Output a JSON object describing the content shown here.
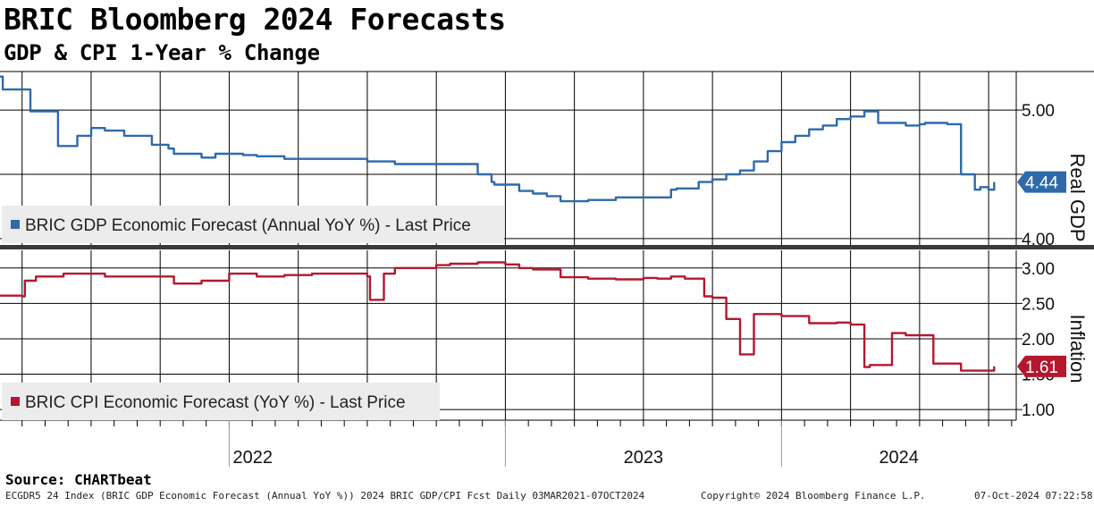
{
  "header": {
    "title": "BRIC Bloomberg 2024 Forecasts",
    "subtitle": "GDP & CPI 1-Year % Change"
  },
  "source": "Source: CHARTbeat",
  "footer": {
    "left": "ECGDR5 24 Index (BRIC GDP Economic Forecast (Annual YoY %)) 2024 BRIC GDP/CPI Fcst  Daily 03MAR2021-07OCT2024",
    "center": "Copyright© 2024 Bloomberg Finance L.P.",
    "right": "07-Oct-2024 07:22:58"
  },
  "colors": {
    "gdp": "#2e6aaa",
    "cpi": "#b4182e",
    "grid": "#000000",
    "legend_bg": "#ececec"
  },
  "chart_data": [
    {
      "type": "line",
      "name": "gdp_panel",
      "axis_label": "Real GDP",
      "ylim": [
        3.95,
        5.3
      ],
      "yticks": [
        4.0,
        4.5,
        5.0
      ],
      "ytick_labels": [
        "4.00",
        "",
        "5.00"
      ],
      "last_value": 4.44,
      "last_label": "4.44",
      "legend": "BRIC GDP Economic Forecast (Annual YoY %) - Last Price",
      "series": [
        {
          "name": "BRIC GDP Economic Forecast (Annual YoY %)",
          "x": [
            2021.17,
            2021.18,
            2021.27,
            2021.28,
            2021.37,
            2021.38,
            2021.45,
            2021.5,
            2021.55,
            2021.62,
            2021.72,
            2021.78,
            2021.8,
            2021.9,
            2021.95,
            2022.05,
            2022.1,
            2022.2,
            2022.3,
            2022.5,
            2022.6,
            2022.8,
            2022.9,
            2022.95,
            2022.96,
            2023.0,
            2023.05,
            2023.1,
            2023.15,
            2023.2,
            2023.3,
            2023.4,
            2023.5,
            2023.6,
            2023.62,
            2023.7,
            2023.75,
            2023.8,
            2023.85,
            2023.9,
            2023.95,
            2024.0,
            2024.05,
            2024.1,
            2024.15,
            2024.2,
            2024.25,
            2024.3,
            2024.32,
            2024.35,
            2024.4,
            2024.45,
            2024.5,
            2024.52,
            2024.6,
            2024.65,
            2024.7,
            2024.72,
            2024.75,
            2024.77
          ],
          "y": [
            5.26,
            5.16,
            5.16,
            4.99,
            4.99,
            4.72,
            4.8,
            4.86,
            4.84,
            4.8,
            4.73,
            4.7,
            4.66,
            4.63,
            4.66,
            4.65,
            4.64,
            4.62,
            4.62,
            4.6,
            4.58,
            4.58,
            4.5,
            4.44,
            4.42,
            4.42,
            4.37,
            4.35,
            4.33,
            4.29,
            4.3,
            4.32,
            4.32,
            4.38,
            4.39,
            4.44,
            4.46,
            4.5,
            4.53,
            4.6,
            4.68,
            4.75,
            4.8,
            4.85,
            4.88,
            4.93,
            4.95,
            4.99,
            4.99,
            4.9,
            4.9,
            4.88,
            4.89,
            4.9,
            4.89,
            4.5,
            4.38,
            4.4,
            4.38,
            4.44
          ]
        }
      ]
    },
    {
      "type": "line",
      "name": "cpi_panel",
      "axis_label": "Inflation",
      "ylim": [
        0.85,
        3.25
      ],
      "yticks": [
        1.0,
        1.5,
        2.0,
        2.5,
        3.0
      ],
      "ytick_labels": [
        "1.00",
        "1.50",
        "2.00",
        "2.50",
        "3.00"
      ],
      "last_value": 1.61,
      "last_label": "1.61",
      "legend": "BRIC CPI Economic Forecast (YoY %) - Last Price",
      "series": [
        {
          "name": "BRIC CPI Economic Forecast (YoY %)",
          "x": [
            2021.17,
            2021.25,
            2021.26,
            2021.3,
            2021.4,
            2021.5,
            2021.55,
            2021.7,
            2021.8,
            2021.9,
            2022.0,
            2022.1,
            2022.2,
            2022.3,
            2022.5,
            2022.51,
            2022.56,
            2022.6,
            2022.75,
            2022.8,
            2022.9,
            2023.0,
            2023.05,
            2023.1,
            2023.2,
            2023.3,
            2023.4,
            2023.5,
            2023.55,
            2023.6,
            2023.65,
            2023.72,
            2023.73,
            2023.75,
            2023.8,
            2023.85,
            2023.9,
            2024.0,
            2024.1,
            2024.12,
            2024.2,
            2024.25,
            2024.3,
            2024.32,
            2024.35,
            2024.4,
            2024.45,
            2024.55,
            2024.65,
            2024.7,
            2024.77
          ],
          "y": [
            2.61,
            2.6,
            2.82,
            2.88,
            2.92,
            2.92,
            2.88,
            2.88,
            2.78,
            2.82,
            2.92,
            2.88,
            2.9,
            2.92,
            2.88,
            2.55,
            2.92,
            3.0,
            3.04,
            3.06,
            3.08,
            3.05,
            3.0,
            2.98,
            2.87,
            2.85,
            2.84,
            2.86,
            2.85,
            2.88,
            2.85,
            2.6,
            2.6,
            2.58,
            2.28,
            1.78,
            2.35,
            2.32,
            2.22,
            2.22,
            2.23,
            2.2,
            1.6,
            1.63,
            1.63,
            2.08,
            2.05,
            1.65,
            1.55,
            1.55,
            1.61
          ]
        }
      ]
    }
  ],
  "x_axis": {
    "xlim": [
      2021.17,
      2024.85
    ],
    "year_labels": [
      "2022",
      "2023",
      "2024"
    ]
  }
}
